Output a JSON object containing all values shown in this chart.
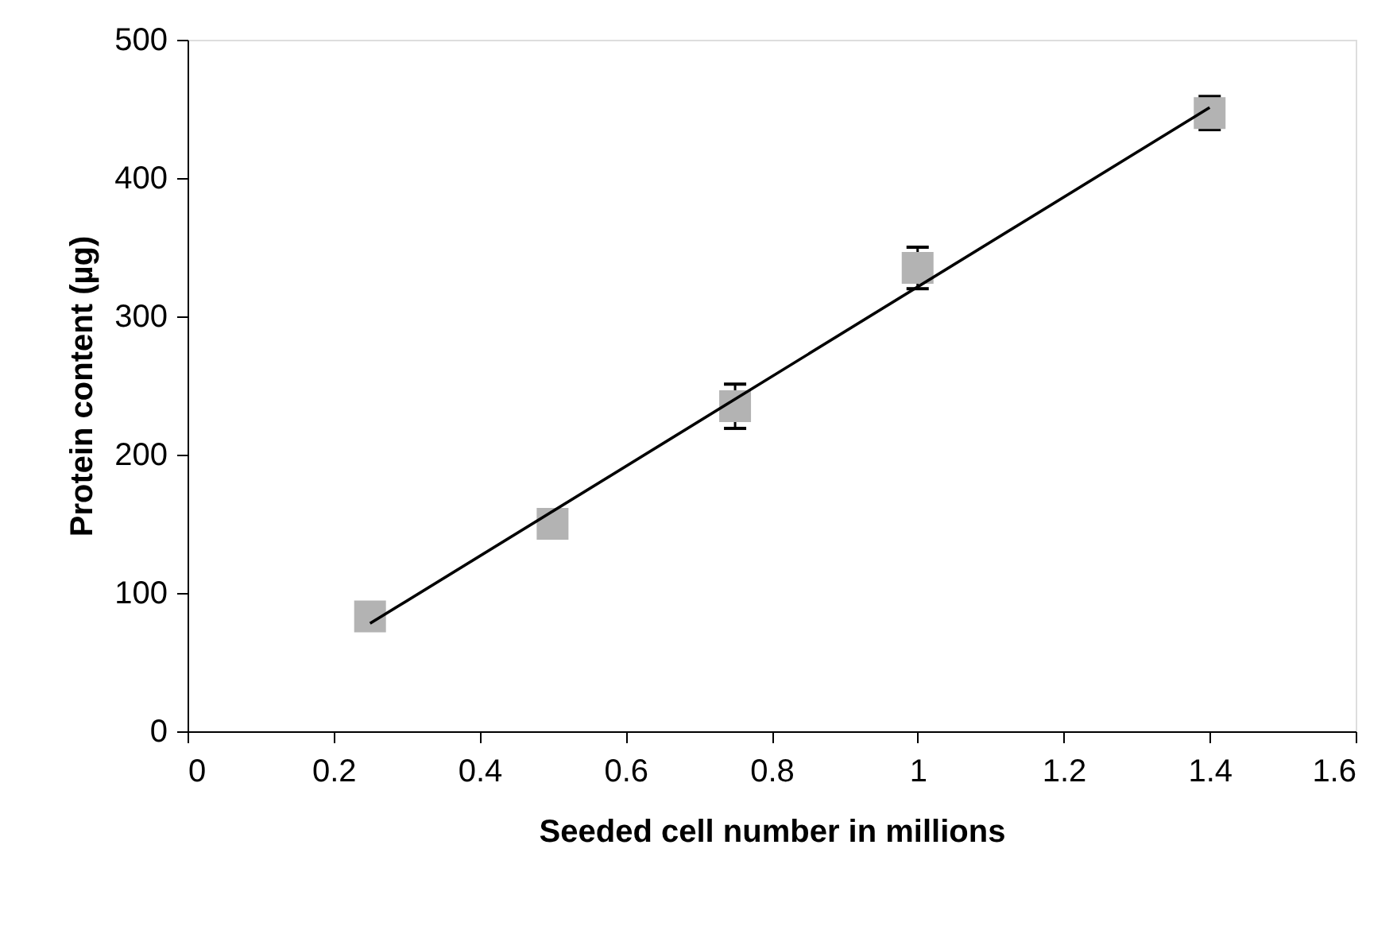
{
  "chart_data": {
    "type": "scatter",
    "xlabel": "Seeded cell number in millions",
    "ylabel": "Protein content (µg)",
    "x": [
      0.25,
      0.5,
      0.75,
      1.0,
      1.4
    ],
    "series": [
      {
        "color": "#b3b3b3",
        "marker": "square",
        "values": [
          83,
          150,
          235,
          335,
          447
        ],
        "errors": [
          null,
          null,
          16,
          15,
          12
        ]
      },
      {
        "type": "line",
        "color": "#000000",
        "line_style": "solid",
        "marker": "none",
        "x": [
          0.25,
          1.4
        ],
        "values": [
          78,
          451
        ]
      }
    ],
    "xlim": [
      0,
      1.6
    ],
    "xticks": [
      0,
      0.2,
      0.4,
      0.6,
      0.8,
      1,
      1.2,
      1.4,
      1.6
    ],
    "ylim": [
      0,
      500
    ],
    "yticks": [
      0,
      100,
      200,
      300,
      400,
      500
    ],
    "grid": false
  }
}
